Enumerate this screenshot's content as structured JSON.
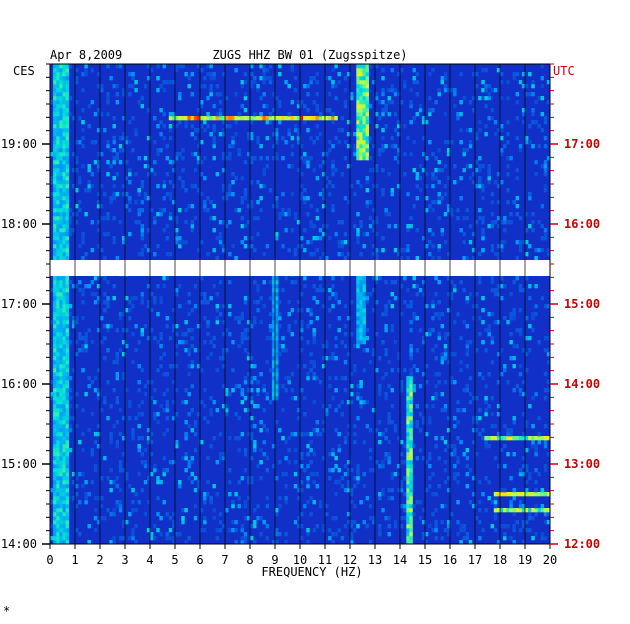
{
  "header": {
    "date": "Apr 8,2009",
    "station": "ZUGS HHZ BW 01 (Zugsspitze)",
    "left_tz": "CES",
    "right_tz": "UTC",
    "footnote": "*"
  },
  "chart_data": {
    "type": "heatmap",
    "title": "ZUGS HHZ BW 01 (Zugsspitze)",
    "subtitle": "Apr 8,2009",
    "xlabel": "FREQUENCY (HZ)",
    "xlim": [
      0,
      20
    ],
    "x_ticks": [
      "0",
      "1",
      "2",
      "3",
      "4",
      "5",
      "6",
      "7",
      "8",
      "9",
      "10",
      "11",
      "12",
      "13",
      "14",
      "15",
      "16",
      "17",
      "18",
      "19",
      "20"
    ],
    "left_axis_label": "CES",
    "right_axis_label": "UTC",
    "ylim_hours": [
      14.0,
      20.0
    ],
    "left_ticks": [
      {
        "hour": 19,
        "label": "19:00"
      },
      {
        "hour": 18,
        "label": "18:00"
      },
      {
        "hour": 17,
        "label": "17:00"
      },
      {
        "hour": 16,
        "label": "16:00"
      },
      {
        "hour": 15,
        "label": "15:00"
      },
      {
        "hour": 14,
        "label": "14:00"
      }
    ],
    "right_ticks": [
      {
        "hour": 19,
        "label": "17:00"
      },
      {
        "hour": 18,
        "label": "16:00"
      },
      {
        "hour": 17,
        "label": "15:00"
      },
      {
        "hour": 16,
        "label": "14:00"
      },
      {
        "hour": 15,
        "label": "13:00"
      },
      {
        "hour": 14,
        "label": "12:00"
      }
    ],
    "data_gap_hours": [
      17.35,
      17.55
    ],
    "background_color": "#1030c8",
    "features": [
      {
        "kind": "band",
        "freq": [
          0.1,
          0.8
        ],
        "hours": [
          14.0,
          20.0
        ],
        "intensity": 0.6
      },
      {
        "kind": "band",
        "freq": [
          12.2,
          12.7
        ],
        "hours": [
          18.8,
          20.0
        ],
        "intensity": 0.75
      },
      {
        "kind": "band",
        "freq": [
          14.2,
          14.5
        ],
        "hours": [
          14.0,
          16.1
        ],
        "intensity": 0.7
      },
      {
        "kind": "band",
        "freq": [
          8.9,
          9.1
        ],
        "hours": [
          15.8,
          17.4
        ],
        "intensity": 0.5
      },
      {
        "kind": "band",
        "freq": [
          12.3,
          12.6
        ],
        "hours": [
          16.5,
          17.4
        ],
        "intensity": 0.55
      },
      {
        "kind": "line",
        "freq": [
          4.8,
          11.5
        ],
        "hours": [
          19.3,
          19.33
        ],
        "intensity": 0.9
      },
      {
        "kind": "line",
        "freq": [
          17.4,
          20.0
        ],
        "hours": [
          15.3,
          15.33
        ],
        "intensity": 0.8
      },
      {
        "kind": "line",
        "freq": [
          17.8,
          20.0
        ],
        "hours": [
          14.62,
          14.65
        ],
        "intensity": 0.8
      },
      {
        "kind": "line",
        "freq": [
          17.8,
          20.0
        ],
        "hours": [
          14.4,
          14.43
        ],
        "intensity": 0.75
      }
    ]
  }
}
